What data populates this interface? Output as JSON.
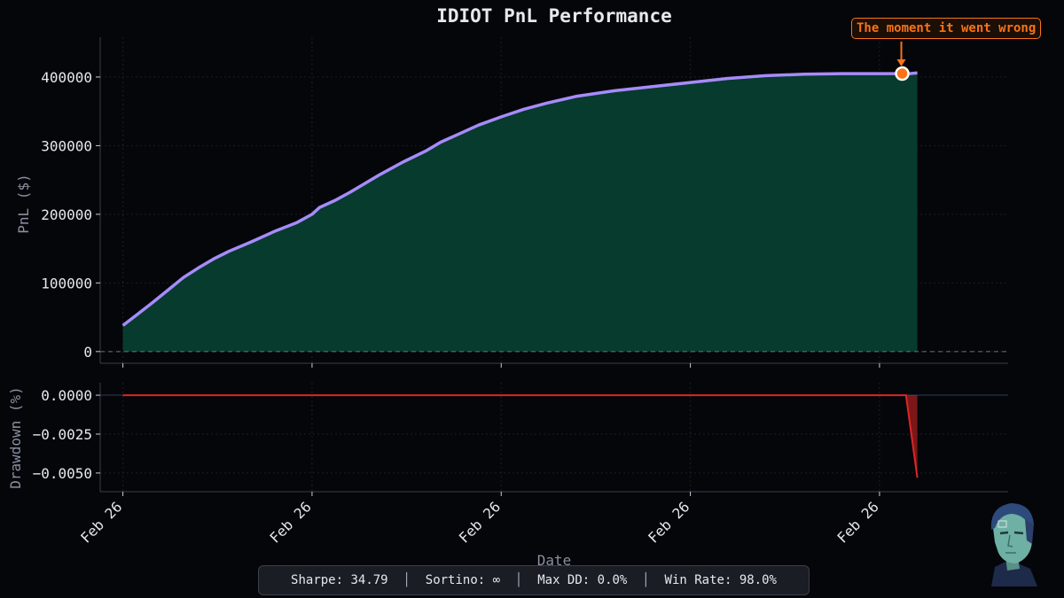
{
  "title": "IDIOT PnL Performance",
  "annotation": "The moment it went wrong",
  "stats": {
    "sharpe": "Sharpe: 34.79",
    "sortino": "Sortino: ∞",
    "max_dd": "Max DD: 0.0%",
    "win_rate": "Win Rate: 98.0%",
    "separator": "  │  "
  },
  "colors": {
    "background": "#05060a",
    "pnl_line": "#a78bfa",
    "pnl_fill": "#073b2d",
    "drawdown": "#dc2626",
    "annotation": "#f97316"
  },
  "chart_data": [
    {
      "type": "area",
      "ylabel": "PnL ($)",
      "ylim": [
        -17000,
        458000
      ],
      "xlim": [
        -3,
        117
      ],
      "yticks": [
        0,
        100000,
        200000,
        300000,
        400000
      ],
      "ytick_labels": [
        "0",
        "100000",
        "200000",
        "300000",
        "400000"
      ],
      "xticks": [
        0,
        25,
        50,
        75,
        100
      ],
      "xtick_labels": [
        "Feb 26",
        "Feb 26",
        "Feb 26",
        "Feb 26",
        "Feb 26"
      ],
      "xlabel": "Date",
      "grid": true,
      "zero_line": true,
      "series": [
        {
          "x": [
            0,
            2,
            4,
            6,
            8,
            10,
            12,
            14,
            17,
            20,
            23,
            25,
            26,
            28,
            30,
            32,
            34,
            37,
            40,
            42,
            44,
            47,
            50,
            53,
            56,
            60,
            65,
            70,
            75,
            80,
            85,
            90,
            95,
            100,
            104,
            105
          ],
          "y": [
            38000,
            55000,
            72000,
            90000,
            108000,
            122000,
            135000,
            146000,
            160000,
            175000,
            188000,
            200000,
            210000,
            220000,
            232000,
            245000,
            258000,
            276000,
            292000,
            305000,
            315000,
            330000,
            342000,
            353000,
            362000,
            372000,
            380000,
            386000,
            392000,
            398000,
            402000,
            404000,
            405000,
            405000,
            405000,
            406000
          ]
        }
      ],
      "marker": {
        "x": 103,
        "y": 405000
      }
    },
    {
      "type": "area",
      "ylabel": "Drawdown (%)",
      "ylim": [
        -0.0062,
        0.0008
      ],
      "xlim": [
        -3,
        117
      ],
      "yticks": [
        0,
        -0.0025,
        -0.005
      ],
      "ytick_labels": [
        "0.0000",
        "−0.0025",
        "−0.0050"
      ],
      "xticks": [
        0,
        25,
        50,
        75,
        100
      ],
      "xtick_labels": [
        "Feb 26",
        "Feb 26",
        "Feb 26",
        "Feb 26",
        "Feb 26"
      ],
      "xlabel": "Date",
      "grid": true,
      "series": [
        {
          "x": [
            0,
            103.5,
            105
          ],
          "y": [
            0,
            0,
            -0.0053
          ]
        }
      ]
    }
  ]
}
